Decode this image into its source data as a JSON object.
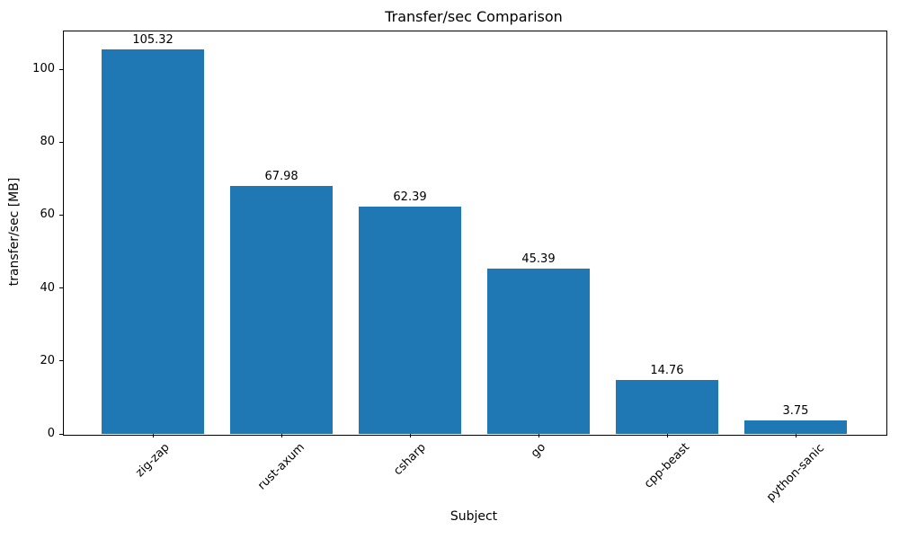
{
  "chart_data": {
    "type": "bar",
    "title": "Transfer/sec Comparison",
    "xlabel": "Subject",
    "ylabel": "transfer/sec [MB]",
    "categories": [
      "zig-zap",
      "rust-axum",
      "csharp",
      "go",
      "cpp-beast",
      "python-sanic"
    ],
    "values": [
      105.32,
      67.98,
      62.39,
      45.39,
      14.76,
      3.75
    ],
    "value_labels": [
      "105.32",
      "67.98",
      "62.39",
      "45.39",
      "14.76",
      "3.75"
    ],
    "yticks": [
      0,
      20,
      40,
      60,
      80,
      100
    ],
    "ytick_labels": [
      "0",
      "20",
      "40",
      "60",
      "80",
      "100"
    ],
    "ylim": [
      0,
      110.6
    ],
    "bar_color": "#1f77b4",
    "bar_width_ratio": 0.8,
    "xtick_rotation_deg": 45,
    "grid": false,
    "legend_position": "none"
  }
}
